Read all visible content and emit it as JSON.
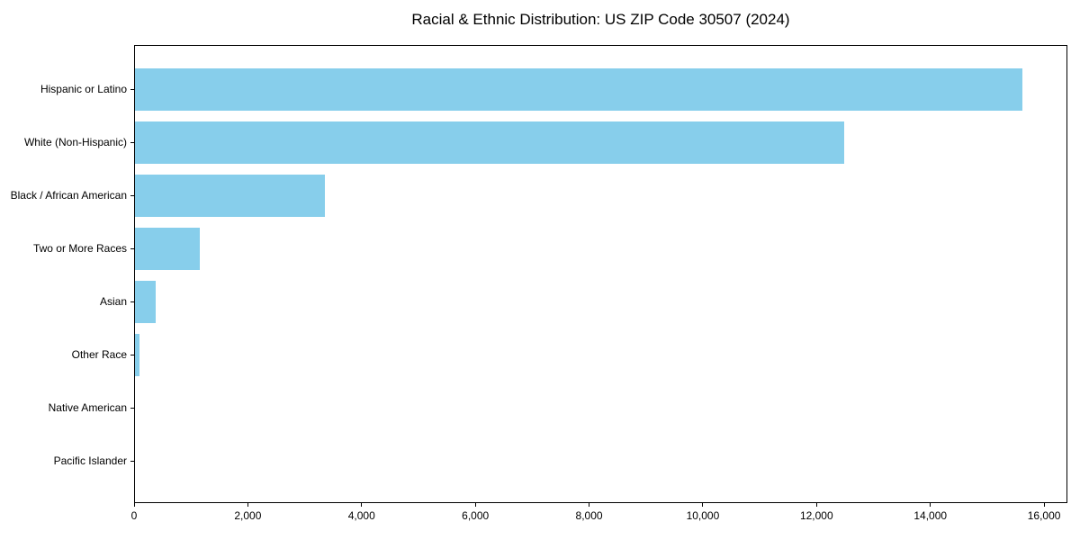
{
  "chart_data": {
    "type": "bar",
    "orientation": "horizontal",
    "title": "Racial & Ethnic Distribution: US ZIP Code 30507 (2024)",
    "categories": [
      "Hispanic or Latino",
      "White (Non-Hispanic)",
      "Black / African American",
      "Two or More Races",
      "Asian",
      "Other Race",
      "Native American",
      "Pacific Islander"
    ],
    "values": [
      15630,
      12500,
      3340,
      1140,
      360,
      75,
      0,
      0
    ],
    "xlabel": "",
    "ylabel": "",
    "xlim": [
      0,
      16410
    ],
    "xticks": [
      0,
      2000,
      4000,
      6000,
      8000,
      10000,
      12000,
      14000,
      16000
    ],
    "xtick_labels": [
      "0",
      "2,000",
      "4,000",
      "6,000",
      "8,000",
      "10,000",
      "12,000",
      "14,000",
      "16,000"
    ],
    "grid": false,
    "legend": "none",
    "bar_color": "#87CEEB",
    "spine_color": "#000000",
    "text_color": "#000000"
  }
}
